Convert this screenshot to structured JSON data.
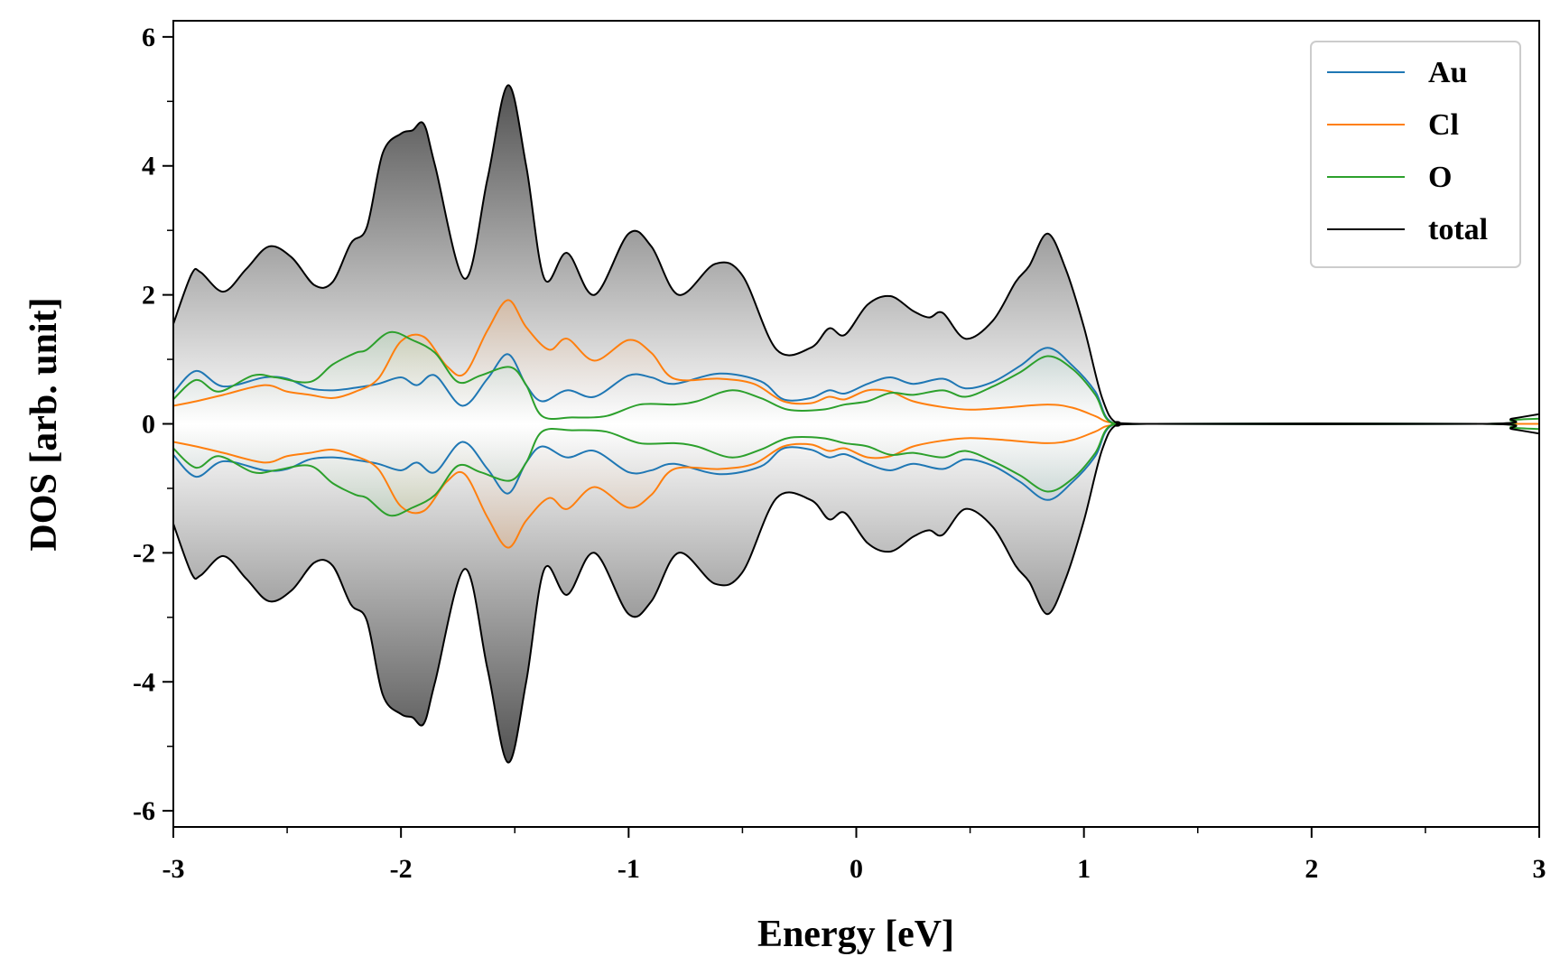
{
  "chart_data": {
    "type": "area",
    "title": "",
    "xlabel": "Energy [eV]",
    "ylabel": "DOS [arb. unit]",
    "xlim": [
      -3,
      3
    ],
    "ylim": [
      -6.25,
      6.25
    ],
    "xticks": [
      -3,
      -2,
      -1,
      0,
      1,
      2,
      3
    ],
    "xtick_labels": [
      "-3",
      "-2",
      "-1",
      "0",
      "1",
      "2",
      "3"
    ],
    "yticks": [
      -6,
      -4,
      -2,
      0,
      2,
      4,
      6
    ],
    "ytick_labels": [
      "-6",
      "-4",
      "-2",
      "0",
      "2",
      "4",
      "6"
    ],
    "legend_position": "top-right",
    "mirrored": true,
    "series": [
      {
        "name": "Au",
        "color": "#1f77b4",
        "points": [
          [
            -3,
            0.48
          ],
          [
            -2.9,
            0.82
          ],
          [
            -2.78,
            0.58
          ],
          [
            -2.6,
            0.72
          ],
          [
            -2.5,
            0.7
          ],
          [
            -2.4,
            0.55
          ],
          [
            -2.3,
            0.52
          ],
          [
            -2.2,
            0.56
          ],
          [
            -2.1,
            0.62
          ],
          [
            -2.0,
            0.72
          ],
          [
            -1.93,
            0.6
          ],
          [
            -1.85,
            0.75
          ],
          [
            -1.73,
            0.28
          ],
          [
            -1.62,
            0.7
          ],
          [
            -1.53,
            1.08
          ],
          [
            -1.45,
            0.6
          ],
          [
            -1.38,
            0.35
          ],
          [
            -1.27,
            0.52
          ],
          [
            -1.15,
            0.42
          ],
          [
            -1.0,
            0.75
          ],
          [
            -0.9,
            0.72
          ],
          [
            -0.8,
            0.62
          ],
          [
            -0.6,
            0.78
          ],
          [
            -0.42,
            0.66
          ],
          [
            -0.32,
            0.38
          ],
          [
            -0.2,
            0.4
          ],
          [
            -0.12,
            0.52
          ],
          [
            -0.05,
            0.47
          ],
          [
            0.05,
            0.62
          ],
          [
            0.15,
            0.72
          ],
          [
            0.25,
            0.62
          ],
          [
            0.38,
            0.7
          ],
          [
            0.48,
            0.55
          ],
          [
            0.6,
            0.65
          ],
          [
            0.72,
            0.9
          ],
          [
            0.84,
            1.18
          ],
          [
            0.95,
            0.9
          ],
          [
            1.05,
            0.5
          ],
          [
            1.12,
            0.03
          ],
          [
            1.3,
            0.0
          ],
          [
            2.75,
            0.0
          ],
          [
            3,
            0.0
          ]
        ]
      },
      {
        "name": "Cl",
        "color": "#ff7f0e",
        "points": [
          [
            -3,
            0.28
          ],
          [
            -2.9,
            0.35
          ],
          [
            -2.78,
            0.45
          ],
          [
            -2.6,
            0.6
          ],
          [
            -2.5,
            0.5
          ],
          [
            -2.4,
            0.45
          ],
          [
            -2.3,
            0.4
          ],
          [
            -2.2,
            0.5
          ],
          [
            -2.1,
            0.7
          ],
          [
            -2.0,
            1.28
          ],
          [
            -1.9,
            1.35
          ],
          [
            -1.8,
            0.9
          ],
          [
            -1.72,
            0.78
          ],
          [
            -1.62,
            1.45
          ],
          [
            -1.53,
            1.92
          ],
          [
            -1.45,
            1.5
          ],
          [
            -1.35,
            1.15
          ],
          [
            -1.27,
            1.32
          ],
          [
            -1.15,
            0.98
          ],
          [
            -1.0,
            1.3
          ],
          [
            -0.9,
            1.1
          ],
          [
            -0.8,
            0.7
          ],
          [
            -0.6,
            0.7
          ],
          [
            -0.45,
            0.62
          ],
          [
            -0.32,
            0.35
          ],
          [
            -0.2,
            0.32
          ],
          [
            -0.12,
            0.42
          ],
          [
            -0.05,
            0.38
          ],
          [
            0.05,
            0.52
          ],
          [
            0.15,
            0.5
          ],
          [
            0.25,
            0.35
          ],
          [
            0.38,
            0.26
          ],
          [
            0.5,
            0.22
          ],
          [
            0.65,
            0.25
          ],
          [
            0.84,
            0.3
          ],
          [
            0.95,
            0.25
          ],
          [
            1.05,
            0.12
          ],
          [
            1.12,
            0.02
          ],
          [
            1.3,
            0.0
          ],
          [
            2.75,
            0.0
          ],
          [
            3,
            0.0
          ]
        ]
      },
      {
        "name": "O",
        "color": "#2ca02c",
        "points": [
          [
            -3,
            0.38
          ],
          [
            -2.9,
            0.68
          ],
          [
            -2.8,
            0.5
          ],
          [
            -2.65,
            0.75
          ],
          [
            -2.55,
            0.72
          ],
          [
            -2.4,
            0.65
          ],
          [
            -2.3,
            0.92
          ],
          [
            -2.2,
            1.1
          ],
          [
            -2.15,
            1.15
          ],
          [
            -2.05,
            1.42
          ],
          [
            -1.95,
            1.3
          ],
          [
            -1.85,
            1.1
          ],
          [
            -1.75,
            0.65
          ],
          [
            -1.65,
            0.75
          ],
          [
            -1.52,
            0.88
          ],
          [
            -1.45,
            0.6
          ],
          [
            -1.38,
            0.12
          ],
          [
            -1.25,
            0.1
          ],
          [
            -1.1,
            0.12
          ],
          [
            -0.95,
            0.3
          ],
          [
            -0.8,
            0.3
          ],
          [
            -0.7,
            0.35
          ],
          [
            -0.55,
            0.52
          ],
          [
            -0.42,
            0.4
          ],
          [
            -0.3,
            0.22
          ],
          [
            -0.15,
            0.22
          ],
          [
            -0.05,
            0.3
          ],
          [
            0.05,
            0.35
          ],
          [
            0.15,
            0.48
          ],
          [
            0.25,
            0.45
          ],
          [
            0.38,
            0.52
          ],
          [
            0.48,
            0.42
          ],
          [
            0.6,
            0.58
          ],
          [
            0.72,
            0.8
          ],
          [
            0.84,
            1.05
          ],
          [
            0.95,
            0.85
          ],
          [
            1.05,
            0.45
          ],
          [
            1.12,
            0.02
          ],
          [
            1.3,
            0.0
          ],
          [
            2.75,
            0.0
          ],
          [
            2.88,
            0.06
          ],
          [
            3,
            0.08
          ]
        ]
      },
      {
        "name": "total",
        "color": "#000000",
        "points": [
          [
            -3,
            1.55
          ],
          [
            -2.92,
            2.32
          ],
          [
            -2.88,
            2.35
          ],
          [
            -2.78,
            2.05
          ],
          [
            -2.68,
            2.4
          ],
          [
            -2.58,
            2.75
          ],
          [
            -2.48,
            2.58
          ],
          [
            -2.38,
            2.15
          ],
          [
            -2.3,
            2.2
          ],
          [
            -2.22,
            2.8
          ],
          [
            -2.15,
            3.05
          ],
          [
            -2.08,
            4.2
          ],
          [
            -2.0,
            4.5
          ],
          [
            -1.95,
            4.55
          ],
          [
            -1.9,
            4.65
          ],
          [
            -1.85,
            4.0
          ],
          [
            -1.72,
            2.25
          ],
          [
            -1.62,
            3.8
          ],
          [
            -1.53,
            5.25
          ],
          [
            -1.45,
            4.0
          ],
          [
            -1.37,
            2.25
          ],
          [
            -1.27,
            2.65
          ],
          [
            -1.15,
            2.0
          ],
          [
            -1.0,
            2.95
          ],
          [
            -0.9,
            2.75
          ],
          [
            -0.78,
            2.0
          ],
          [
            -0.62,
            2.48
          ],
          [
            -0.5,
            2.3
          ],
          [
            -0.35,
            1.15
          ],
          [
            -0.2,
            1.18
          ],
          [
            -0.12,
            1.48
          ],
          [
            -0.05,
            1.38
          ],
          [
            0.05,
            1.85
          ],
          [
            0.15,
            1.98
          ],
          [
            0.25,
            1.75
          ],
          [
            0.32,
            1.65
          ],
          [
            0.38,
            1.72
          ],
          [
            0.48,
            1.32
          ],
          [
            0.6,
            1.6
          ],
          [
            0.7,
            2.2
          ],
          [
            0.76,
            2.45
          ],
          [
            0.84,
            2.95
          ],
          [
            0.92,
            2.4
          ],
          [
            1.0,
            1.5
          ],
          [
            1.08,
            0.4
          ],
          [
            1.15,
            0.0
          ],
          [
            1.3,
            0.0
          ],
          [
            2.75,
            0.0
          ],
          [
            2.88,
            0.08
          ],
          [
            3,
            0.15
          ]
        ]
      }
    ]
  }
}
